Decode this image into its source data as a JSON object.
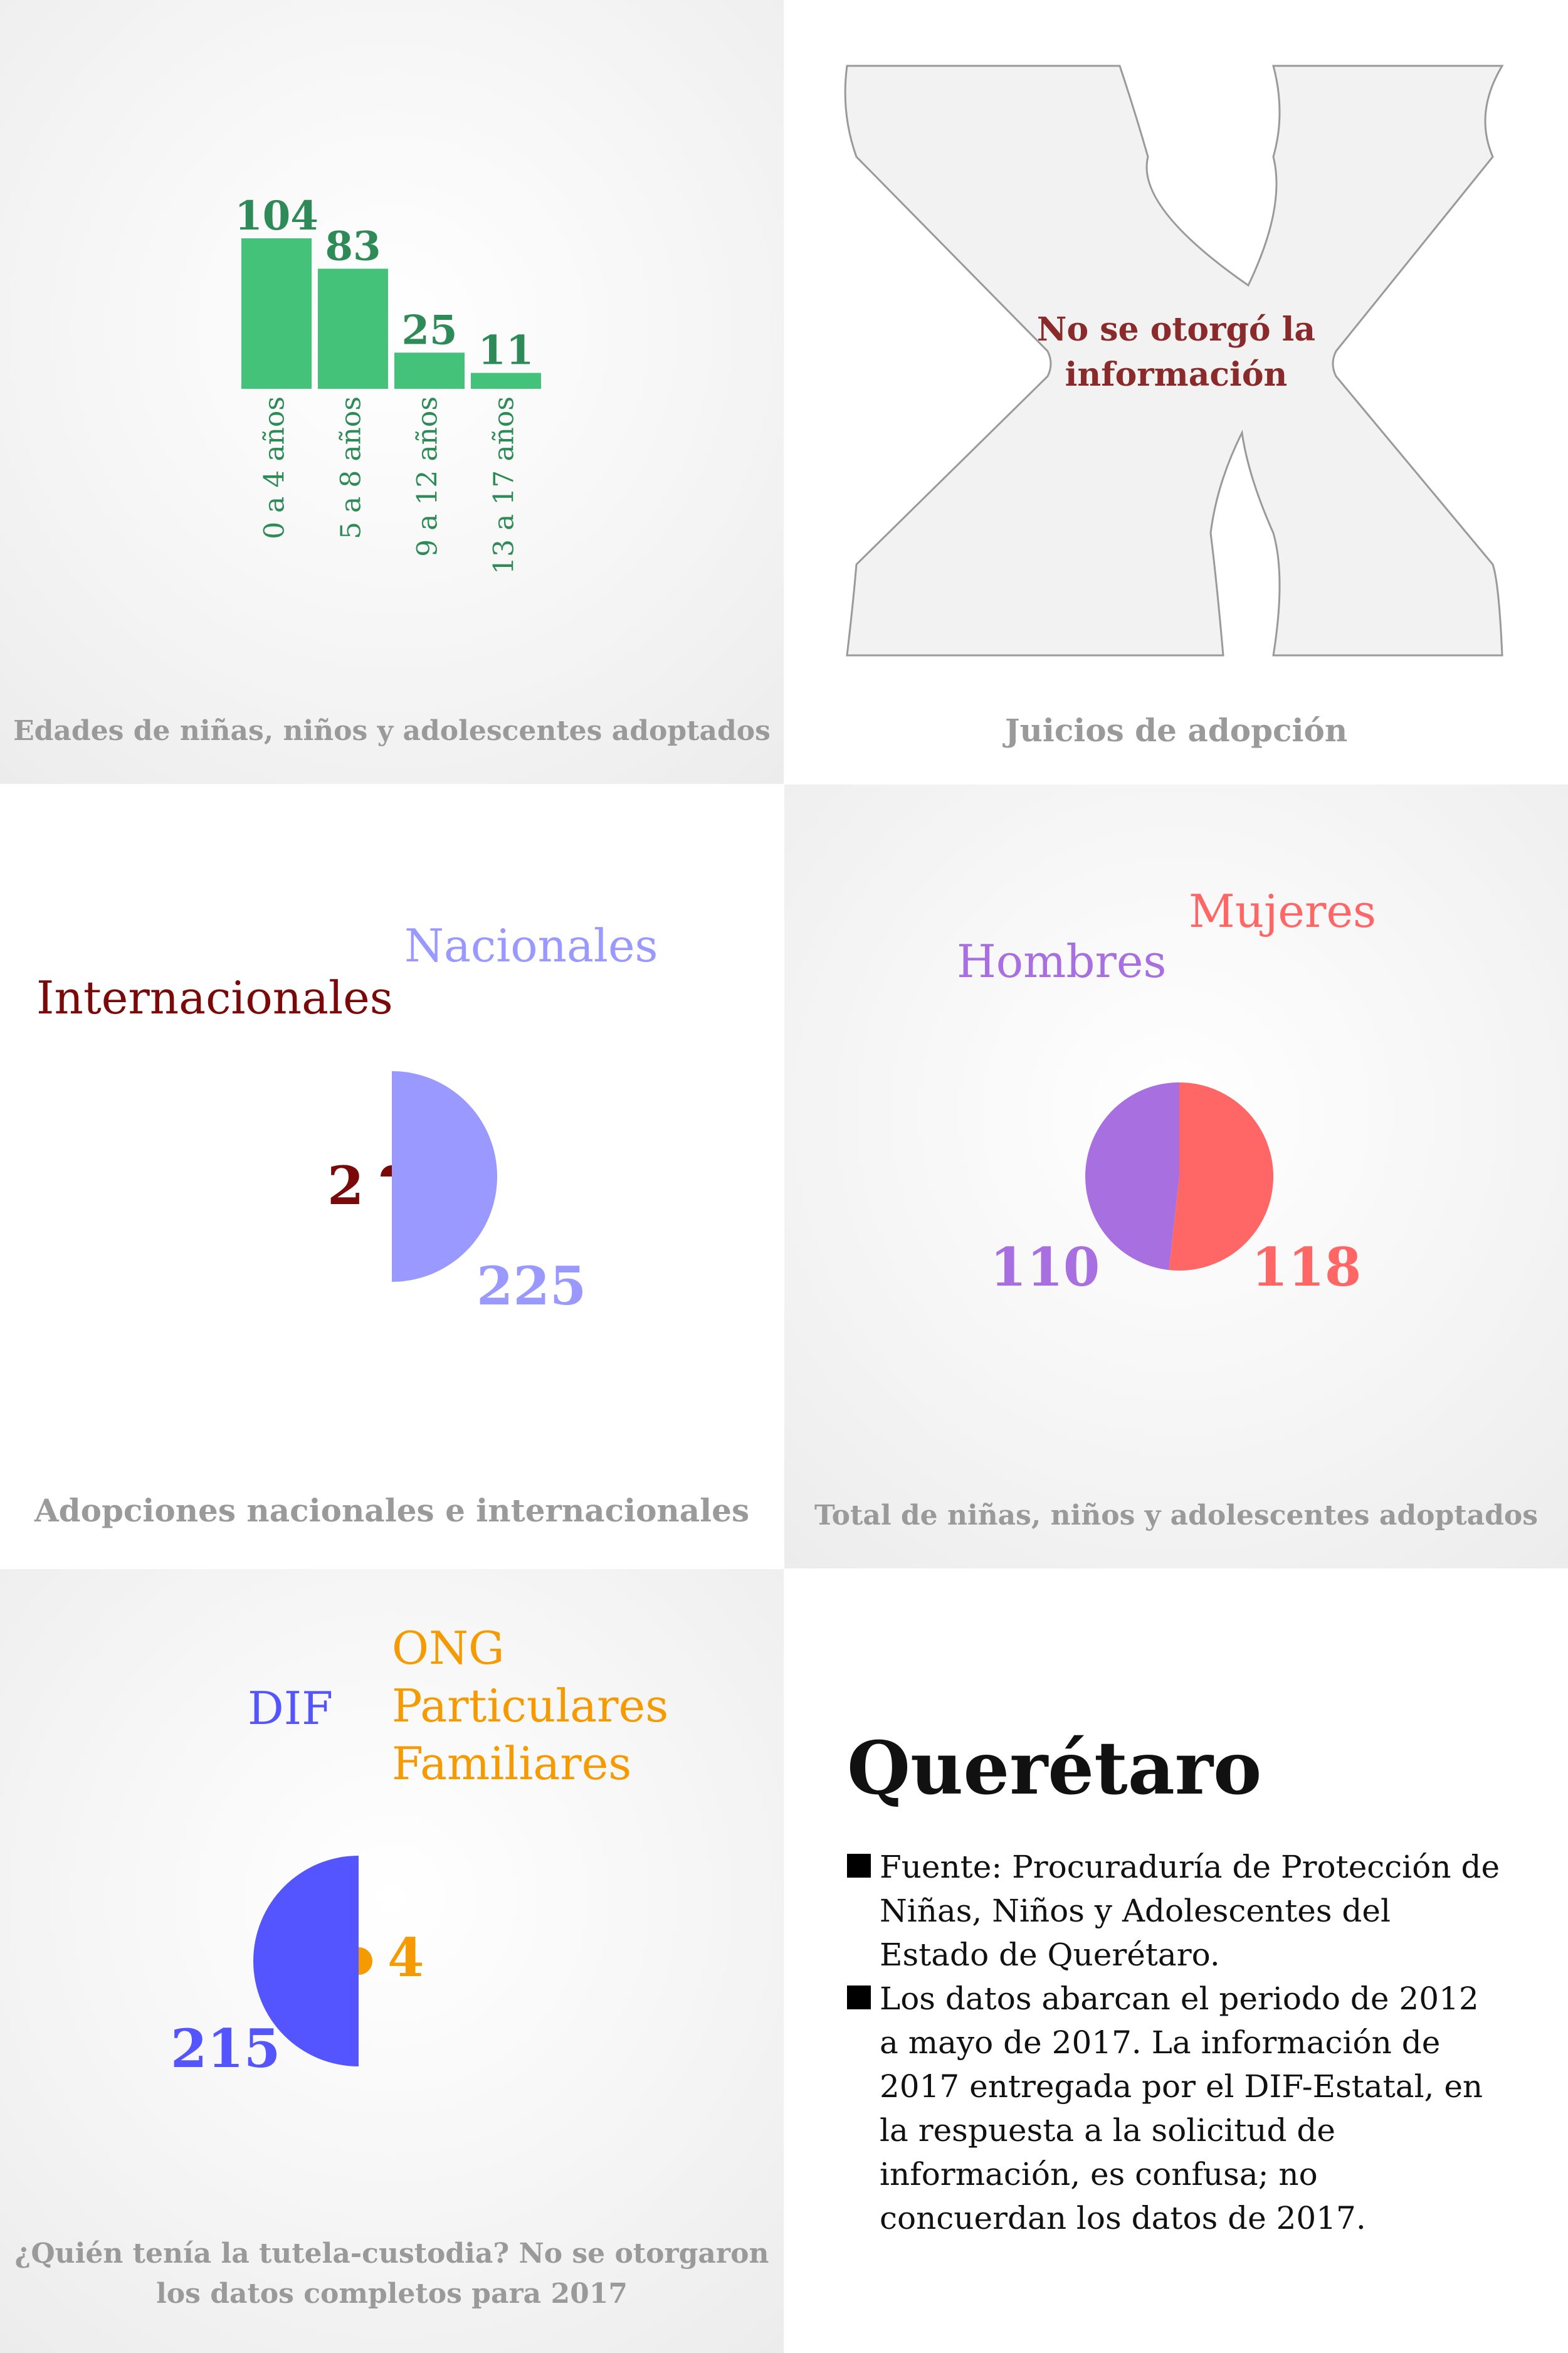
{
  "colors": {
    "ages": "#44c27a",
    "ages_text": "#2e8b57",
    "internacionales": "#7a0a0a",
    "nacionales": "#9999ff",
    "hombres": "#a86fe0",
    "mujeres": "#ff6666",
    "dif": "#5555ff",
    "ong": "#f59a00",
    "no_info": "#8a2a2a",
    "caption": "#9a9a9a"
  },
  "chart_data": [
    {
      "type": "bar",
      "title": "Edades de niñas, niños y adolescentes adoptados",
      "categories": [
        "0 a 4 años",
        "5 a 8 años",
        "9 a 12 años",
        "13 a 17 años"
      ],
      "values": [
        104,
        83,
        25,
        11
      ],
      "value_labels": [
        "104",
        "83",
        "25",
        "11"
      ],
      "ylim": [
        0,
        104
      ]
    },
    {
      "type": "pie",
      "title": "Adopciones nacionales e internacionales",
      "labels": [
        "Internacionales",
        "Nacionales"
      ],
      "values": [
        2,
        225
      ],
      "value_labels": [
        "2",
        "225"
      ]
    },
    {
      "type": "pie",
      "title": "Total de niñas, niños y adolescentes adoptados",
      "labels": [
        "Hombres",
        "Mujeres"
      ],
      "values": [
        110,
        118
      ],
      "value_labels": [
        "110",
        "118"
      ]
    },
    {
      "type": "pie",
      "title": "¿Quién tenía la tutela-custodia? No se otorgaron los datos completos para 2017",
      "labels": [
        "DIF",
        "ONG\nParticulares\nFamiliares"
      ],
      "label_lines": [
        [
          "DIF"
        ],
        [
          "ONG",
          "Particulares",
          "Familiares"
        ]
      ],
      "values": [
        215,
        4
      ],
      "value_labels": [
        "215",
        "4"
      ]
    }
  ],
  "juicios": {
    "caption": "Juicios de adopción",
    "message_lines": [
      "No se otorgó la",
      "información"
    ]
  },
  "captions": {
    "edades": "Edades de niñas, niños y adolescentes adoptados",
    "adopciones": "Adopciones nacionales e internacionales",
    "total": "Total de niñas, niños y adolescentes adoptados",
    "tutela_line1": "¿Quién tenía la tutela-custodia? No se otorgaron",
    "tutela_line2": "los datos completos para 2017"
  },
  "info": {
    "title": "Querétaro",
    "notes": [
      "Fuente: Procuraduría de Protección de Niñas, Niños y Adolescentes del Estado de Querétaro.",
      "Los datos abarcan el periodo de 2012 a mayo de 2017. La información de 2017 entregada por el DIF-Estatal, en la respuesta a la solicitud de información, es confusa; no concuerdan los datos de 2017."
    ]
  }
}
